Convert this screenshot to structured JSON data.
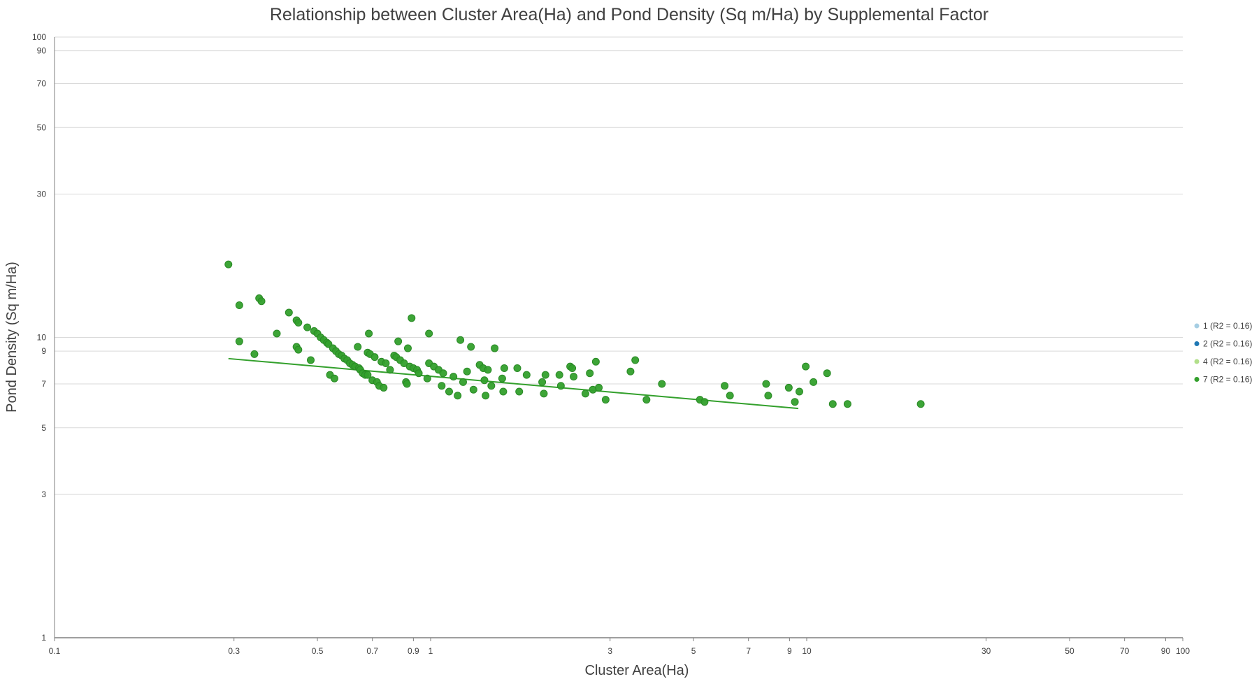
{
  "chart_data": {
    "type": "scatter",
    "title": "Relationship between Cluster Area(Ha) and Pond Density (Sq m/Ha) by Supplemental Factor",
    "xlabel": "Cluster Area(Ha)",
    "ylabel": "Pond Density (Sq m/Ha)",
    "xscale": "log",
    "yscale": "log",
    "xlim": [
      0.1,
      100
    ],
    "ylim": [
      1,
      100
    ],
    "x_ticks": [
      "0.1",
      "0.3",
      "0.5",
      "0.7",
      "0.9",
      "1",
      "3",
      "5",
      "7",
      "9",
      "10",
      "30",
      "50",
      "70",
      "90",
      "100"
    ],
    "y_ticks": [
      "1",
      "3",
      "5",
      "7",
      "9",
      "10",
      "30",
      "50",
      "70",
      "90",
      "100"
    ],
    "grid": "horizontal",
    "legend_position": "right",
    "series": [
      {
        "name": "1 (R2 = 0.16)",
        "color": "#a6cee3",
        "points": []
      },
      {
        "name": "2 (R2 = 0.16)",
        "color": "#1f78b4",
        "points": []
      },
      {
        "name": "4 (R2 = 0.16)",
        "color": "#b2df8a",
        "points": []
      },
      {
        "name": "7 (R2 = 0.16)",
        "color": "#33a02c",
        "trendline": [
          [
            0.29,
            8.5
          ],
          [
            9.5,
            5.8
          ]
        ],
        "points": [
          [
            0.29,
            17.5
          ],
          [
            0.31,
            12.8
          ],
          [
            0.31,
            9.7
          ],
          [
            0.34,
            8.8
          ],
          [
            0.35,
            13.5
          ],
          [
            0.355,
            13.2
          ],
          [
            0.39,
            10.3
          ],
          [
            0.42,
            12.1
          ],
          [
            0.44,
            11.4
          ],
          [
            0.44,
            9.3
          ],
          [
            0.445,
            11.2
          ],
          [
            0.445,
            9.1
          ],
          [
            0.47,
            10.8
          ],
          [
            0.48,
            8.4
          ],
          [
            0.49,
            10.5
          ],
          [
            0.5,
            10.3
          ],
          [
            0.51,
            10.0
          ],
          [
            0.52,
            9.8
          ],
          [
            0.53,
            9.6
          ],
          [
            0.535,
            9.5
          ],
          [
            0.54,
            7.5
          ],
          [
            0.55,
            9.2
          ],
          [
            0.555,
            7.3
          ],
          [
            0.56,
            9.0
          ],
          [
            0.57,
            8.8
          ],
          [
            0.58,
            8.7
          ],
          [
            0.59,
            8.5
          ],
          [
            0.6,
            8.4
          ],
          [
            0.61,
            8.2
          ],
          [
            0.62,
            8.1
          ],
          [
            0.63,
            8.0
          ],
          [
            0.64,
            9.3
          ],
          [
            0.645,
            7.9
          ],
          [
            0.65,
            7.8
          ],
          [
            0.66,
            7.6
          ],
          [
            0.67,
            7.5
          ],
          [
            0.68,
            7.5
          ],
          [
            0.68,
            8.9
          ],
          [
            0.685,
            10.3
          ],
          [
            0.69,
            8.8
          ],
          [
            0.7,
            7.2
          ],
          [
            0.71,
            8.6
          ],
          [
            0.72,
            7.1
          ],
          [
            0.73,
            6.9
          ],
          [
            0.74,
            8.3
          ],
          [
            0.75,
            6.8
          ],
          [
            0.76,
            8.2
          ],
          [
            0.78,
            7.8
          ],
          [
            0.8,
            8.7
          ],
          [
            0.81,
            8.6
          ],
          [
            0.82,
            9.7
          ],
          [
            0.83,
            8.4
          ],
          [
            0.85,
            8.2
          ],
          [
            0.86,
            7.1
          ],
          [
            0.865,
            7.0
          ],
          [
            0.87,
            9.2
          ],
          [
            0.88,
            8.0
          ],
          [
            0.89,
            11.6
          ],
          [
            0.9,
            7.9
          ],
          [
            0.92,
            7.8
          ],
          [
            0.93,
            7.6
          ],
          [
            0.98,
            7.3
          ],
          [
            0.99,
            8.2
          ],
          [
            0.99,
            10.3
          ],
          [
            1.02,
            8.0
          ],
          [
            1.05,
            7.8
          ],
          [
            1.07,
            6.9
          ],
          [
            1.08,
            7.6
          ],
          [
            1.12,
            6.6
          ],
          [
            1.15,
            7.4
          ],
          [
            1.18,
            6.4
          ],
          [
            1.2,
            9.8
          ],
          [
            1.22,
            7.1
          ],
          [
            1.25,
            7.7
          ],
          [
            1.28,
            9.3
          ],
          [
            1.3,
            6.7
          ],
          [
            1.35,
            8.1
          ],
          [
            1.38,
            7.9
          ],
          [
            1.39,
            7.2
          ],
          [
            1.4,
            6.4
          ],
          [
            1.42,
            7.8
          ],
          [
            1.45,
            6.9
          ],
          [
            1.48,
            9.2
          ],
          [
            1.55,
            7.3
          ],
          [
            1.56,
            6.6
          ],
          [
            1.57,
            7.9
          ],
          [
            1.7,
            7.9
          ],
          [
            1.72,
            6.6
          ],
          [
            1.8,
            7.5
          ],
          [
            1.98,
            7.1
          ],
          [
            2.0,
            6.5
          ],
          [
            2.02,
            7.5
          ],
          [
            2.2,
            7.5
          ],
          [
            2.22,
            6.9
          ],
          [
            2.35,
            8.0
          ],
          [
            2.38,
            7.9
          ],
          [
            2.4,
            7.4
          ],
          [
            2.58,
            6.5
          ],
          [
            2.65,
            7.6
          ],
          [
            2.7,
            6.7
          ],
          [
            2.75,
            8.3
          ],
          [
            2.8,
            6.8
          ],
          [
            2.92,
            6.2
          ],
          [
            3.4,
            7.7
          ],
          [
            3.5,
            8.4
          ],
          [
            3.75,
            6.2
          ],
          [
            4.12,
            7.0
          ],
          [
            5.2,
            6.2
          ],
          [
            5.35,
            6.1
          ],
          [
            6.05,
            6.9
          ],
          [
            6.25,
            6.4
          ],
          [
            7.8,
            7.0
          ],
          [
            7.9,
            6.4
          ],
          [
            8.96,
            6.8
          ],
          [
            9.3,
            6.1
          ],
          [
            9.56,
            6.6
          ],
          [
            9.94,
            8.0
          ],
          [
            10.42,
            7.1
          ],
          [
            11.33,
            7.6
          ],
          [
            11.73,
            6.0
          ],
          [
            12.84,
            6.0
          ],
          [
            20.1,
            6.0
          ]
        ]
      }
    ]
  }
}
